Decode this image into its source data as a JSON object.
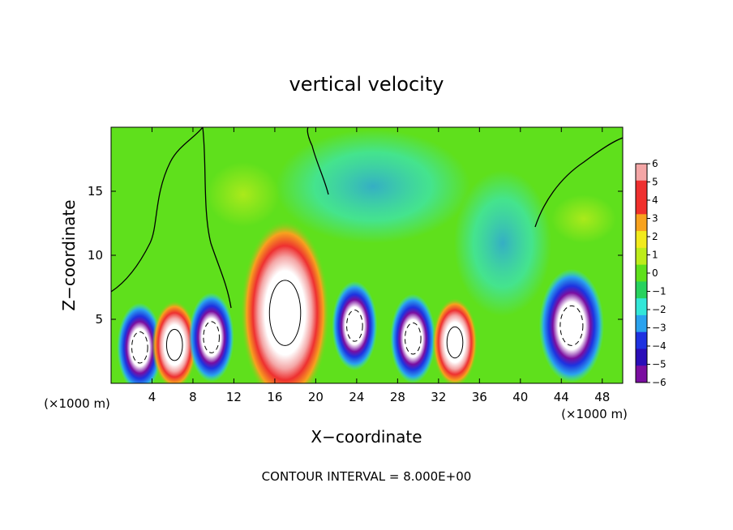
{
  "chart_data": {
    "type": "heatmap",
    "title": "vertical velocity",
    "xlabel": "X−coordinate",
    "ylabel": "Z−coordinate",
    "x_unit_left": "(×1000 m)",
    "x_unit_right": "(×1000 m)",
    "footer": "CONTOUR INTERVAL = 8.000E+00",
    "xlim": [
      0,
      50
    ],
    "ylim": [
      0,
      20
    ],
    "x_ticks": [
      4,
      8,
      12,
      16,
      20,
      24,
      28,
      32,
      36,
      40,
      44,
      48
    ],
    "y_ticks": [
      5,
      10,
      15
    ],
    "colorbar": {
      "ticks": [
        "6",
        "5",
        "4",
        "3",
        "2",
        "1",
        "0",
        "−1",
        "−2",
        "−3",
        "−4",
        "−5",
        "−6"
      ],
      "colors": [
        "#f4a6a6",
        "#ee3030",
        "#f0302c",
        "#f7a21e",
        "#f2ea1c",
        "#bdec1b",
        "#5fe01c",
        "#27d25e",
        "#33e6d8",
        "#2aa2ee",
        "#1e32e0",
        "#2a0eb8",
        "#7a0ea0"
      ]
    },
    "features": [
      {
        "x": 2.8,
        "z": 2.8,
        "w": -1
      },
      {
        "x": 6.2,
        "z": 3.0,
        "w": 1
      },
      {
        "x": 9.8,
        "z": 3.6,
        "w": -1
      },
      {
        "x": 17.0,
        "z": 5.5,
        "w": 1
      },
      {
        "x": 23.8,
        "z": 4.5,
        "w": -1
      },
      {
        "x": 29.5,
        "z": 3.5,
        "w": -1
      },
      {
        "x": 33.6,
        "z": 3.2,
        "w": 1
      },
      {
        "x": 45.0,
        "z": 4.5,
        "w": -1
      }
    ]
  }
}
